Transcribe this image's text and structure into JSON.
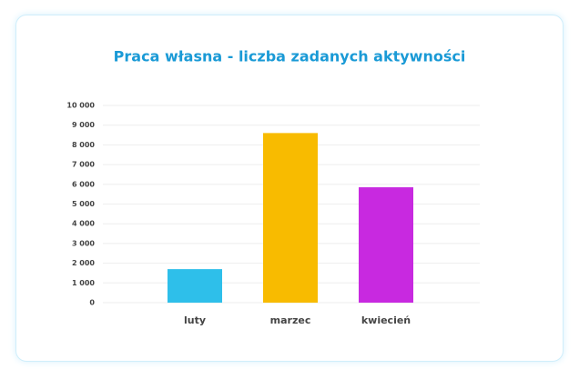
{
  "chart_data": {
    "type": "bar",
    "title": "Praca własna - liczba zadanych aktywności",
    "categories": [
      "luty",
      "marzec",
      "kwiecień"
    ],
    "values": [
      1700,
      8600,
      5850
    ],
    "colors": [
      "#2ebfea",
      "#f8bb00",
      "#c829e0"
    ],
    "ylim": [
      0,
      10000
    ],
    "yticks": [
      0,
      {
        "value": 1000,
        "label": "1 000"
      },
      {
        "value": 2000,
        "label": "2 000"
      },
      {
        "value": 3000,
        "label": "3 000"
      },
      {
        "value": 4000,
        "label": "4 000"
      },
      {
        "value": 5000,
        "label": "5 000"
      },
      {
        "value": 6000,
        "label": "6 000"
      },
      {
        "value": 7000,
        "label": "7 000"
      },
      {
        "value": 8000,
        "label": "8 000"
      },
      {
        "value": 9000,
        "label": "9 000"
      },
      {
        "value": 10000,
        "label": "10 000"
      }
    ],
    "grid": true
  }
}
